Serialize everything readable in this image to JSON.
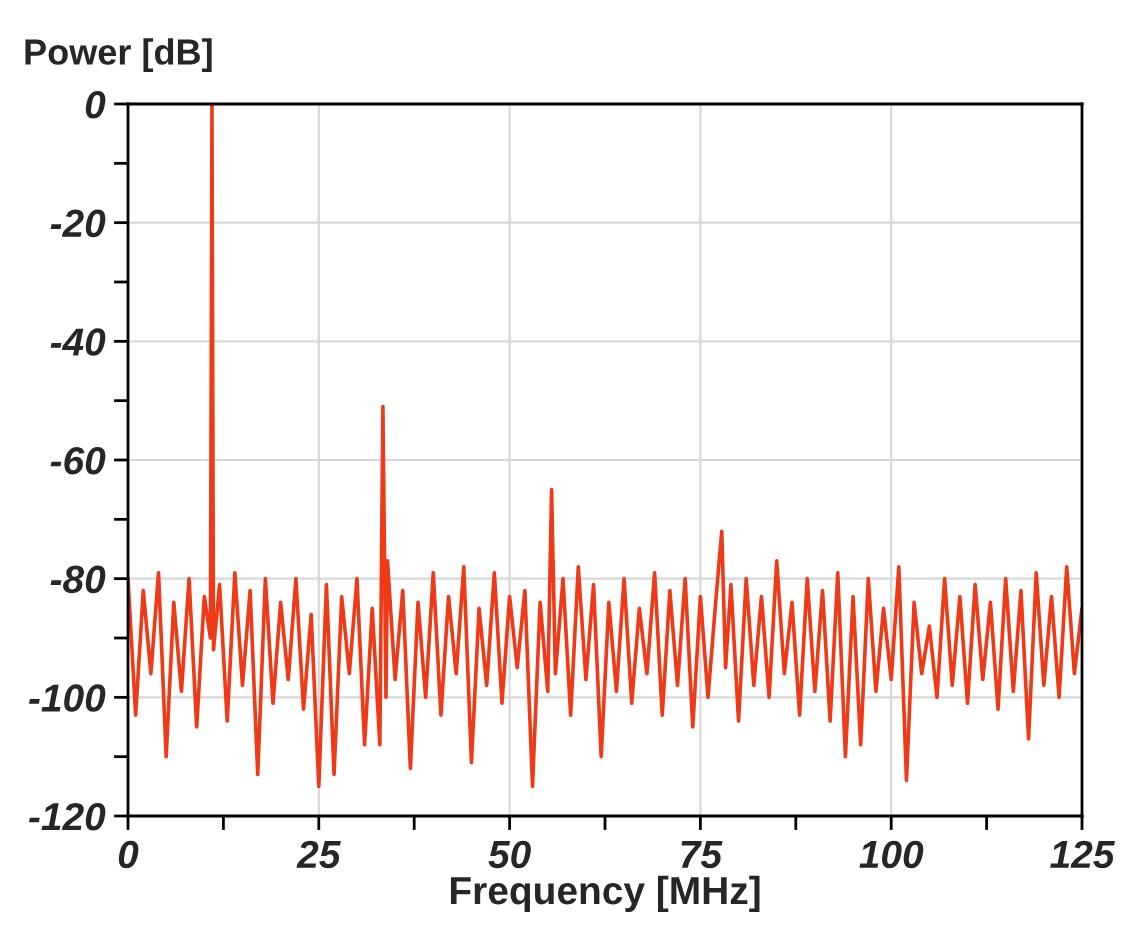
{
  "chart_data": {
    "type": "line",
    "xlabel": "Frequency [MHz]",
    "ylabel": "Power [dB]",
    "xlim": [
      0,
      125
    ],
    "ylim": [
      -120,
      0
    ],
    "xticks": [
      0,
      {
        "value": 12.5,
        "label": null
      },
      25,
      {
        "value": 37.5,
        "label": null
      },
      50,
      {
        "value": 62.5,
        "label": null
      },
      75,
      {
        "value": 87.5,
        "label": null
      },
      100,
      {
        "value": 112.5,
        "label": null
      },
      125
    ],
    "yticks": [
      -120,
      {
        "value": -110,
        "label": null
      },
      -100,
      {
        "value": -90,
        "label": null
      },
      -80,
      {
        "value": -70,
        "label": null
      },
      -60,
      {
        "value": -50,
        "label": null
      },
      -40,
      {
        "value": -30,
        "label": null
      },
      -20,
      {
        "value": -10,
        "label": null
      },
      0
    ],
    "grid": true,
    "marker": "none",
    "line_style": "solid",
    "series": [
      {
        "color": "#f03a17",
        "x": [
          0,
          1,
          2,
          3,
          4,
          5,
          6,
          7,
          8,
          9,
          10,
          10.8,
          11,
          11.2,
          12,
          13,
          14,
          15,
          16,
          17,
          18,
          19,
          20,
          21,
          22,
          23,
          24,
          25,
          26,
          27,
          28,
          29,
          30,
          31,
          32,
          33,
          33.4,
          33.8,
          34,
          35,
          36,
          37,
          38,
          39,
          40,
          41,
          42,
          43,
          44,
          45,
          46,
          47,
          48,
          49,
          50,
          51,
          52,
          53,
          54,
          55,
          55.5,
          56,
          57,
          58,
          59,
          60,
          61,
          62,
          63,
          64,
          65,
          66,
          67,
          68,
          69,
          70,
          71,
          72,
          73,
          74,
          75,
          76,
          77,
          77.8,
          78.3,
          79,
          80,
          81,
          82,
          83,
          84,
          85,
          86,
          87,
          88,
          89,
          90,
          91,
          92,
          93,
          94,
          95,
          96,
          97,
          98,
          99,
          100,
          101,
          102,
          103,
          104,
          105,
          106,
          107,
          108,
          109,
          110,
          111,
          112,
          113,
          114,
          115,
          116,
          117,
          118,
          119,
          120,
          121,
          122,
          123,
          124,
          125
        ],
        "values": [
          -80,
          -103,
          -82,
          -96,
          -79,
          -110,
          -84,
          -99,
          -80,
          -105,
          -83,
          -90,
          0,
          -92,
          -81,
          -104,
          -79,
          -98,
          -82,
          -113,
          -80,
          -101,
          -84,
          -97,
          -80,
          -102,
          -86,
          -115,
          -81,
          -113,
          -83,
          -96,
          -80,
          -108,
          -85,
          -108,
          -51,
          -100,
          -77,
          -97,
          -82,
          -112,
          -84,
          -100,
          -79,
          -103,
          -83,
          -96,
          -78,
          -111,
          -85,
          -98,
          -79,
          -101,
          -83,
          -95,
          -82,
          -115,
          -84,
          -99,
          -65,
          -96,
          -80,
          -103,
          -78,
          -97,
          -81,
          -110,
          -84,
          -99,
          -80,
          -101,
          -85,
          -96,
          -79,
          -103,
          -82,
          -98,
          -80,
          -105,
          -83,
          -100,
          -84,
          -72,
          -95,
          -81,
          -104,
          -80,
          -98,
          -83,
          -100,
          -77,
          -96,
          -84,
          -103,
          -80,
          -99,
          -82,
          -104,
          -79,
          -110,
          -83,
          -108,
          -80,
          -99,
          -85,
          -97,
          -78,
          -114,
          -84,
          -96,
          -88,
          -100,
          -80,
          -98,
          -83,
          -101,
          -81,
          -97,
          -84,
          -102,
          -80,
          -99,
          -82,
          -107,
          -79,
          -98,
          -83,
          -100,
          -78,
          -96,
          -85
        ]
      }
    ]
  }
}
